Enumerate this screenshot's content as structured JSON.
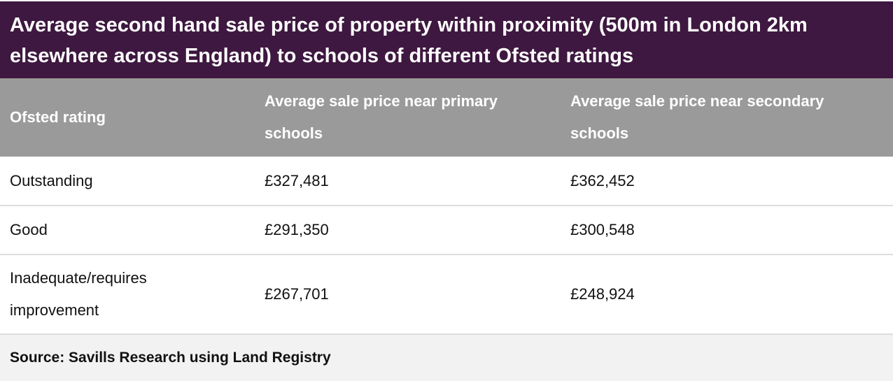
{
  "header": {
    "title": "Average second hand sale price of property within proximity (500m in London 2km elsewhere across England) to schools of different Ofsted ratings"
  },
  "table": {
    "columns": [
      "Ofsted rating",
      "Average sale price near primary schools",
      "Average sale price near secondary schools"
    ],
    "rows": [
      [
        "Outstanding",
        "£327,481",
        "£362,452"
      ],
      [
        "Good",
        "£291,350",
        "£300,548"
      ],
      [
        "Inadequate/requires improvement",
        "£267,701",
        "£248,924"
      ]
    ]
  },
  "footer": {
    "source": "Source: Savills Research using Land Registry"
  }
}
